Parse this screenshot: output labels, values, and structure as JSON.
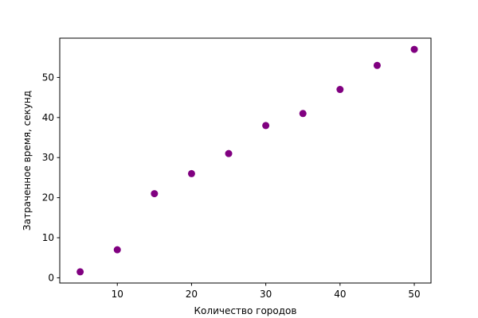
{
  "chart_data": {
    "type": "scatter",
    "xlabel": "Количество городов",
    "ylabel": "Затраченное время, секунд",
    "x": [
      5,
      10,
      15,
      20,
      25,
      30,
      35,
      40,
      45,
      50
    ],
    "y": [
      1.5,
      7,
      21,
      26,
      31,
      38,
      41,
      47,
      53,
      57
    ],
    "xlim": [
      2.25,
      52.25
    ],
    "ylim": [
      -1.3,
      59.8
    ],
    "xticks": [
      10,
      20,
      30,
      40,
      50
    ],
    "yticks": [
      0,
      10,
      20,
      30,
      40,
      50
    ],
    "marker_color": "#800080",
    "grid": false,
    "legend": "none"
  }
}
